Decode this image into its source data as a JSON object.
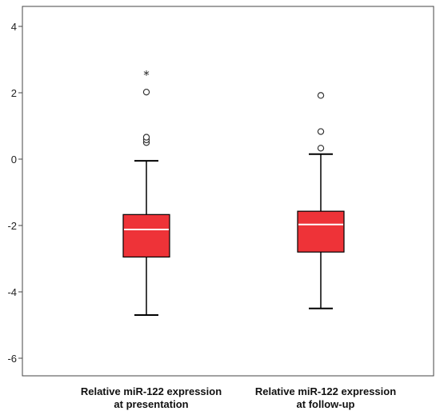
{
  "chart_data": {
    "type": "boxplot",
    "title": "",
    "xlabel": "",
    "ylabel": "",
    "ylim": [
      -6.6,
      4.3
    ],
    "yticks": [
      4,
      2,
      0,
      -2,
      -4,
      -6
    ],
    "yticklabels": [
      "4",
      "2",
      "0",
      "-2",
      "-4",
      "-6"
    ],
    "grid": false,
    "legend": "none",
    "box_color": "#ee3338",
    "median_color": "#ffffff",
    "categories": [
      {
        "line1": "Relative miR-122 expression",
        "line2": "at presentation"
      },
      {
        "line1": "Relative miR-122 expression",
        "line2": "at follow-up"
      }
    ],
    "boxes": [
      {
        "whisker_low": -4.7,
        "q1": -2.95,
        "median": -2.12,
        "q3": -1.67,
        "whisker_high": -0.05,
        "outliers": [
          0.5,
          0.58,
          0.66,
          2.02
        ],
        "extremes": [
          2.55
        ]
      },
      {
        "whisker_low": -4.5,
        "q1": -2.8,
        "median": -1.97,
        "q3": -1.57,
        "whisker_high": 0.15,
        "outliers": [
          0.33,
          0.83,
          1.92
        ],
        "extremes": []
      }
    ]
  }
}
